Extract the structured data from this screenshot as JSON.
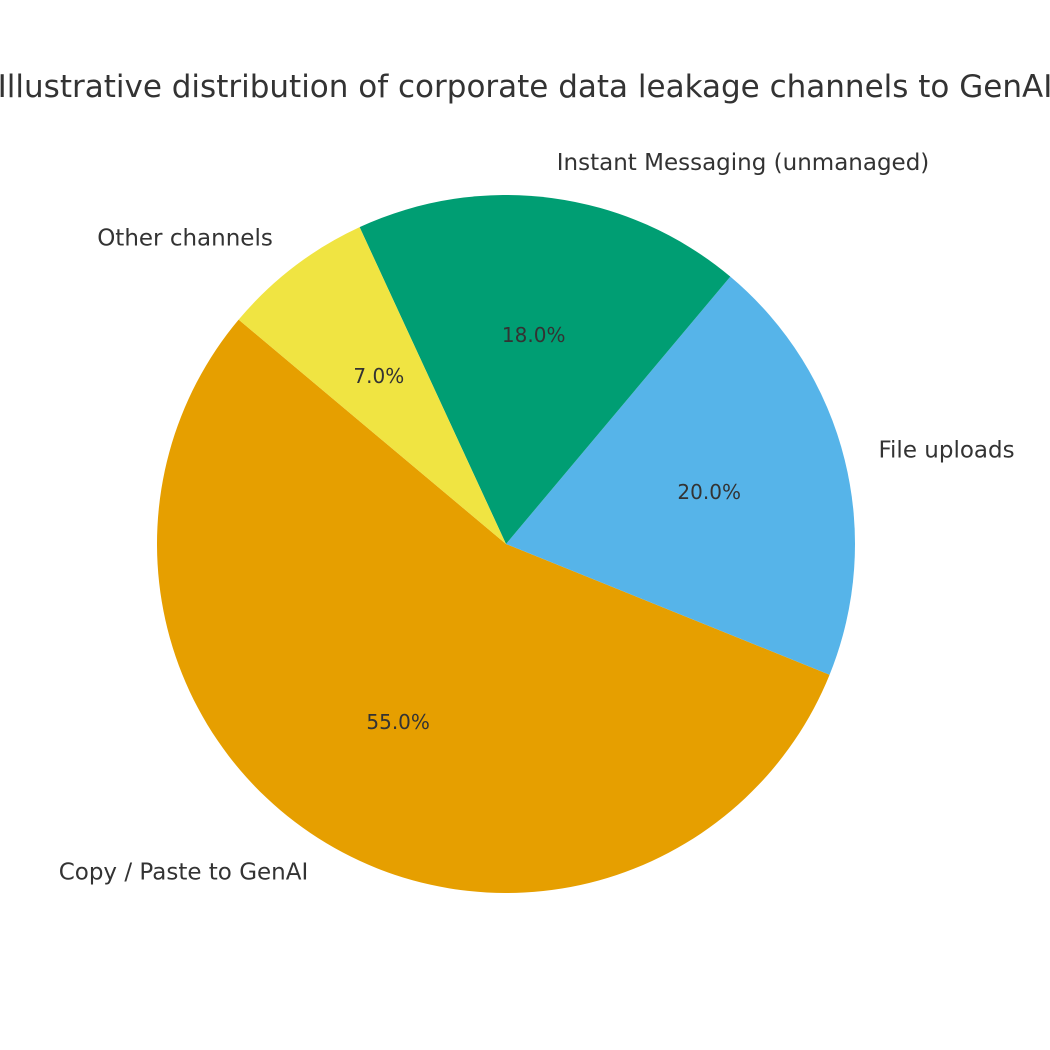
{
  "chart_data": {
    "type": "pie",
    "title": "Illustrative distribution of corporate data leakage channels to GenAI",
    "start_angle_deg": 140,
    "direction": "counterclockwise",
    "legend": "none",
    "slices": [
      {
        "label": "Copy / Paste to GenAI",
        "value": 55.0,
        "pct_label": "55.0%",
        "color": "#E69F00"
      },
      {
        "label": "File uploads",
        "value": 20.0,
        "pct_label": "20.0%",
        "color": "#56B4E9"
      },
      {
        "label": "Instant Messaging (unmanaged)",
        "value": 18.0,
        "pct_label": "18.0%",
        "color": "#009E73"
      },
      {
        "label": "Other channels",
        "value": 7.0,
        "pct_label": "7.0%",
        "color": "#F0E442"
      }
    ]
  }
}
